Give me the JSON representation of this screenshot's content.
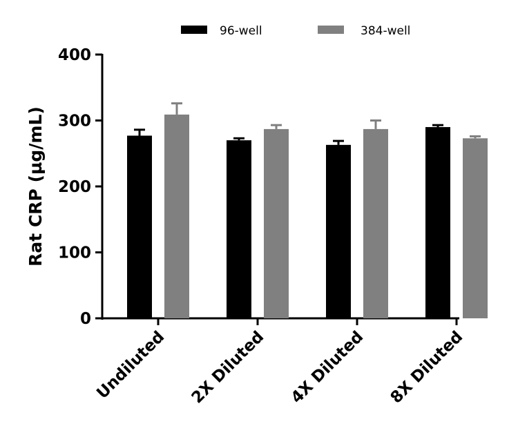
{
  "chart_data": {
    "type": "bar",
    "title": "",
    "xlabel": "",
    "ylabel": "Rat CRP (µg/mL)",
    "ylim": [
      0,
      400
    ],
    "yticks": [
      0,
      100,
      200,
      300,
      400
    ],
    "categories": [
      "Undiluted",
      "2X Diluted",
      "4X Diluted",
      "8X Diluted"
    ],
    "series": [
      {
        "name": "96-well",
        "color": "#000000",
        "values": [
          277,
          270,
          263,
          290
        ],
        "errors": [
          9,
          3,
          6,
          3
        ]
      },
      {
        "name": "384-well",
        "color": "#808080",
        "values": [
          309,
          287,
          287,
          273
        ],
        "errors": [
          17,
          6,
          13,
          3
        ]
      }
    ],
    "legend_position": "top",
    "grid": false
  }
}
